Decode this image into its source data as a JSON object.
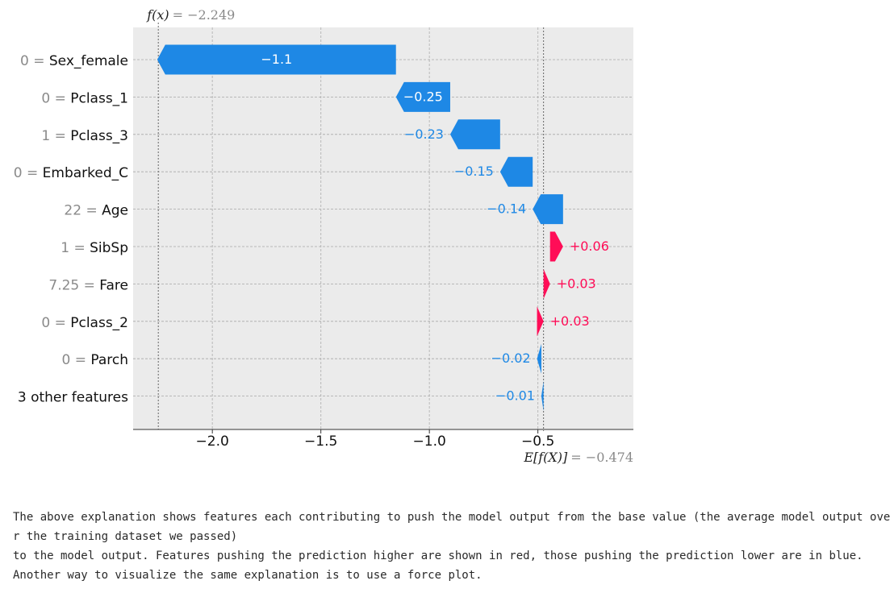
{
  "chart_data": {
    "type": "waterfall",
    "output_label": "f(x)",
    "output_value": -2.249,
    "output_value_text": "= −2.249",
    "base_label": "E[f(X)]",
    "base_value": -0.474,
    "base_value_text": "= −0.474",
    "xlim": [
      -2.365,
      -0.06
    ],
    "xticks": [
      -2.0,
      -1.5,
      -1.0,
      -0.5
    ],
    "xtick_labels": [
      "−2.0",
      "−1.5",
      "−1.0",
      "−0.5"
    ],
    "features": [
      {
        "value": "0",
        "name": "Sex_female",
        "contribution": -1.1,
        "label": "−1.1"
      },
      {
        "value": "0",
        "name": "Pclass_1",
        "contribution": -0.25,
        "label": "−0.25"
      },
      {
        "value": "1",
        "name": "Pclass_3",
        "contribution": -0.23,
        "label": "−0.23"
      },
      {
        "value": "0",
        "name": "Embarked_C",
        "contribution": -0.15,
        "label": "−0.15"
      },
      {
        "value": "22",
        "name": "Age",
        "contribution": -0.14,
        "label": "−0.14"
      },
      {
        "value": "1",
        "name": "SibSp",
        "contribution": 0.06,
        "label": "+0.06"
      },
      {
        "value": "7.25",
        "name": "Fare",
        "contribution": 0.03,
        "label": "+0.03"
      },
      {
        "value": "0",
        "name": "Pclass_2",
        "contribution": 0.03,
        "label": "+0.03"
      },
      {
        "value": "0",
        "name": "Parch",
        "contribution": -0.02,
        "label": "−0.02"
      },
      {
        "value": "",
        "name": "3 other features",
        "contribution": -0.01,
        "label": "−0.01"
      }
    ],
    "colors": {
      "positive": "#ff0d57",
      "negative": "#1e88e5",
      "background": "#ebebeb"
    },
    "grid": true
  },
  "explanation": {
    "line1": "The above explanation shows features each contributing to push the model output from the base value (the average model output over the training dataset we passed)",
    "line2": "to the model output. Features pushing the prediction higher are shown in red, those pushing the prediction lower are in blue.",
    "line3": "Another way to visualize the same explanation is to use a force plot."
  }
}
